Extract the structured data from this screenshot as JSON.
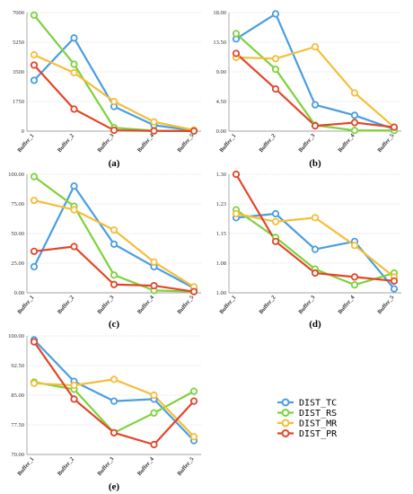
{
  "legend": [
    {
      "label": "DIST_TC",
      "color": "#4a9ee0"
    },
    {
      "label": "DIST_RS",
      "color": "#7ed23d"
    },
    {
      "label": "DIST_MR",
      "color": "#f4be3a"
    },
    {
      "label": "DIST_PR",
      "color": "#e2462a"
    }
  ],
  "chart_data": [
    {
      "type": "line",
      "panel": "(a)",
      "categories": [
        "Buffer_1",
        "Buffer_2",
        "Buffer_3",
        "Buffer_4",
        "Buffer_5"
      ],
      "ylim": [
        0,
        7000
      ],
      "yticks": [
        "0",
        "1750",
        "3500",
        "5250",
        "7000"
      ],
      "yticks_values": [
        0,
        1750,
        3500,
        5250,
        7000
      ],
      "grid": true,
      "series": [
        {
          "name": "DIST_TC",
          "color": "#4a9ee0",
          "values": [
            3000,
            5500,
            1450,
            350,
            30
          ]
        },
        {
          "name": "DIST_RS",
          "color": "#7ed23d",
          "values": [
            6850,
            3950,
            200,
            30,
            10
          ]
        },
        {
          "name": "DIST_MR",
          "color": "#f4be3a",
          "values": [
            4500,
            3450,
            1750,
            550,
            60
          ]
        },
        {
          "name": "DIST_PR",
          "color": "#e2462a",
          "values": [
            3900,
            1300,
            50,
            10,
            5
          ]
        }
      ]
    },
    {
      "type": "line",
      "panel": "(b)",
      "categories": [
        "Buffer_1",
        "Buffer_2",
        "Buffer_3",
        "Buffer_4",
        "Buffer_5"
      ],
      "ylim": [
        0,
        18
      ],
      "yticks": [
        "0.00",
        "4.50",
        "9.00",
        "13.50",
        "18.00"
      ],
      "yticks_values": [
        0,
        4.5,
        9,
        13.5,
        18
      ],
      "grid": true,
      "series": [
        {
          "name": "DIST_TC",
          "color": "#4a9ee0",
          "values": [
            14.0,
            17.8,
            4.0,
            2.4,
            0.3
          ]
        },
        {
          "name": "DIST_RS",
          "color": "#7ed23d",
          "values": [
            14.8,
            9.4,
            0.9,
            0.1,
            0.1
          ]
        },
        {
          "name": "DIST_MR",
          "color": "#f4be3a",
          "values": [
            11.2,
            11.0,
            12.8,
            5.8,
            0.6
          ]
        },
        {
          "name": "DIST_PR",
          "color": "#e2462a",
          "values": [
            11.8,
            6.4,
            0.8,
            1.3,
            0.6
          ]
        }
      ]
    },
    {
      "type": "line",
      "panel": "(c)",
      "categories": [
        "Buffer_1",
        "Buffer_2",
        "Buffer_3",
        "Buffer_4",
        "Buffer_5"
      ],
      "ylim": [
        0,
        100
      ],
      "yticks": [
        "0.00",
        "25.00",
        "50.00",
        "75.00",
        "100.00"
      ],
      "yticks_values": [
        0,
        25,
        50,
        75,
        100
      ],
      "grid": true,
      "series": [
        {
          "name": "DIST_TC",
          "color": "#4a9ee0",
          "values": [
            22,
            90,
            41,
            22,
            4
          ]
        },
        {
          "name": "DIST_RS",
          "color": "#7ed23d",
          "values": [
            98,
            73,
            15,
            2,
            1
          ]
        },
        {
          "name": "DIST_MR",
          "color": "#f4be3a",
          "values": [
            78,
            70,
            53,
            26,
            5
          ]
        },
        {
          "name": "DIST_PR",
          "color": "#e2462a",
          "values": [
            35,
            39,
            7,
            6,
            1
          ]
        }
      ]
    },
    {
      "type": "line",
      "panel": "(d)",
      "categories": [
        "Buffer_1",
        "Buffer_2",
        "Buffer_3",
        "Buffer_4",
        "Buffer_5"
      ],
      "ylim": [
        1.0,
        1.3
      ],
      "yticks": [
        "1.00",
        "1.08",
        "1.15",
        "1.23",
        "1.30"
      ],
      "yticks_values": [
        1.0,
        1.075,
        1.15,
        1.225,
        1.3
      ],
      "grid": true,
      "series": [
        {
          "name": "DIST_TC",
          "color": "#4a9ee0",
          "values": [
            1.19,
            1.2,
            1.11,
            1.13,
            1.01
          ]
        },
        {
          "name": "DIST_RS",
          "color": "#7ed23d",
          "values": [
            1.21,
            1.14,
            1.06,
            1.02,
            1.05
          ]
        },
        {
          "name": "DIST_MR",
          "color": "#f4be3a",
          "values": [
            1.2,
            1.18,
            1.19,
            1.12,
            1.04
          ]
        },
        {
          "name": "DIST_PR",
          "color": "#e2462a",
          "values": [
            1.3,
            1.13,
            1.05,
            1.04,
            1.03
          ]
        }
      ]
    },
    {
      "type": "line",
      "panel": "(e)",
      "categories": [
        "Buffer_1",
        "Buffer_2",
        "Buffer_3",
        "Buffer_4",
        "Buffer_5"
      ],
      "ylim": [
        70,
        100
      ],
      "yticks": [
        "70.00",
        "77.50",
        "85.00",
        "92.50",
        "100.00"
      ],
      "yticks_values": [
        70,
        77.5,
        85,
        92.5,
        100
      ],
      "grid": true,
      "series": [
        {
          "name": "DIST_TC",
          "color": "#4a9ee0",
          "values": [
            99,
            88.5,
            83.5,
            84,
            73.5
          ]
        },
        {
          "name": "DIST_RS",
          "color": "#7ed23d",
          "values": [
            88.3,
            86.5,
            75.5,
            80.5,
            86.0
          ]
        },
        {
          "name": "DIST_MR",
          "color": "#f4be3a",
          "values": [
            88,
            87.5,
            89.0,
            85.0,
            74.5
          ]
        },
        {
          "name": "DIST_PR",
          "color": "#e2462a",
          "values": [
            98.5,
            84.0,
            75.5,
            72.5,
            83.5
          ]
        }
      ]
    }
  ]
}
